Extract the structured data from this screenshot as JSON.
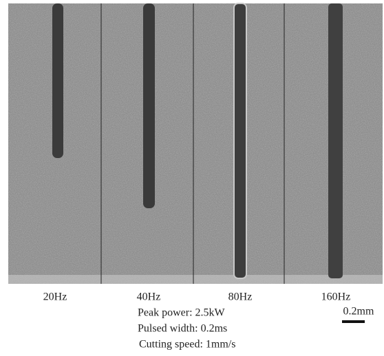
{
  "panels": [
    {
      "label": "20Hz"
    },
    {
      "label": "40Hz"
    },
    {
      "label": "80Hz"
    },
    {
      "label": "160Hz"
    }
  ],
  "conditions": [
    "Peak power: 2.5kW",
    "Pulsed width: 0.2ms",
    "Cutting speed: 1mm/s"
  ],
  "scale_bar": {
    "label": "0.2mm"
  }
}
